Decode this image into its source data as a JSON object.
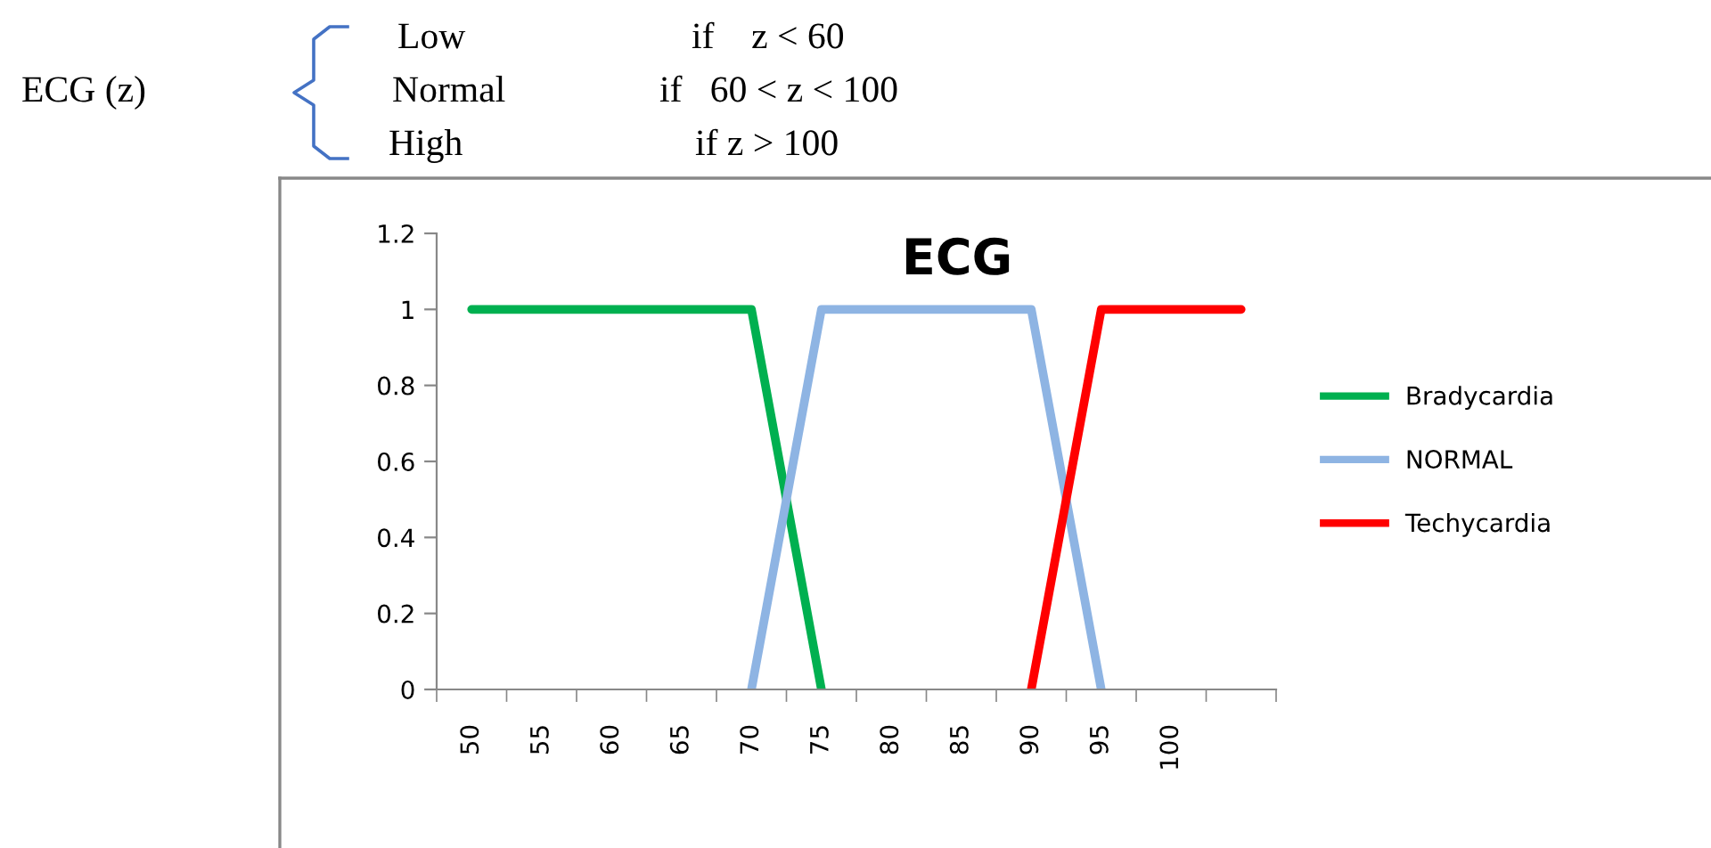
{
  "chart_data": {
    "type": "line",
    "title": "ECG",
    "categories": [
      "50",
      "55",
      "60",
      "65",
      "70",
      "75",
      "80",
      "85",
      "90",
      "95",
      "100",
      null
    ],
    "series": [
      {
        "name": "Bradycardia",
        "color": "#00b050",
        "values": [
          1,
          1,
          1,
          1,
          1,
          0,
          null,
          null,
          null,
          null,
          null,
          null
        ]
      },
      {
        "name": "NORMAL",
        "color": "#8eb4e3",
        "values": [
          null,
          null,
          null,
          null,
          0,
          1,
          1,
          1,
          1,
          0,
          null,
          null
        ]
      },
      {
        "name": "Techycardia",
        "color": "#ff0000",
        "values": [
          null,
          null,
          null,
          null,
          null,
          null,
          null,
          null,
          0,
          1,
          1,
          1
        ]
      }
    ],
    "ylim": [
      0,
      1.2
    ],
    "yticks": [
      0,
      0.2,
      0.4,
      0.6,
      0.8,
      1,
      1.2
    ],
    "grid": false,
    "legend": "right",
    "marker": "none",
    "line_style": "solid",
    "annotations": [
      "ECG (z)",
      "Low",
      "if    z < 60",
      "Normal",
      "if   60 < z < 100",
      "High",
      "if z > 100"
    ]
  }
}
